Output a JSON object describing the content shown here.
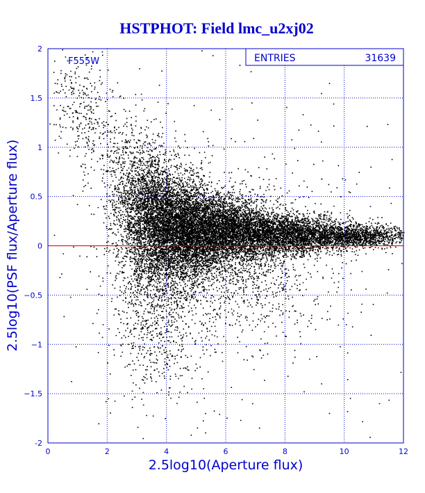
{
  "chart_data": {
    "type": "scatter",
    "title": "HSTPHOT: Field lmc_u2xj02",
    "xlabel": "2.5log10(Aperture flux)",
    "ylabel": "2.5log10(PSF flux/Aperture flux)",
    "xlim": [
      0,
      12
    ],
    "ylim": [
      -2,
      2
    ],
    "x_ticks": [
      0,
      2,
      4,
      6,
      8,
      10,
      12
    ],
    "x_tick_labels": [
      "0",
      "2",
      "4",
      "6",
      "8",
      "10",
      "12"
    ],
    "y_ticks": [
      -2,
      -1.5,
      -1,
      -0.5,
      0,
      0.5,
      1,
      1.5,
      2
    ],
    "y_tick_labels": [
      "-2",
      "−1.5",
      "−1",
      "−0.5",
      "0",
      "0.5",
      "1",
      "1.5",
      "2"
    ],
    "grid": true,
    "reference_line": {
      "y": 0
    },
    "annotation": "F555W",
    "stats_box": {
      "label": "ENTRIES",
      "value": "31639"
    },
    "colors": {
      "title": "#0000cc",
      "axis": "#0000cc",
      "grid": "#0000cc",
      "points": "#000000",
      "reference_line": "#cc0000"
    },
    "series": [
      {
        "density_model": [
          {
            "x": 0.8,
            "y": 1.55,
            "sx": 0.5,
            "sy": 0.25,
            "n": 140
          },
          {
            "x": 1.5,
            "y": 1.2,
            "sx": 0.45,
            "sy": 0.3,
            "n": 180
          },
          {
            "x": 2.6,
            "y": 0.6,
            "sx": 0.4,
            "sy": 0.35,
            "n": 500
          },
          {
            "x": 3.4,
            "y": 0.3,
            "sx": 0.45,
            "sy": 0.35,
            "n": 2400
          },
          {
            "x": 4.5,
            "y": 0.18,
            "sx": 0.6,
            "sy": 0.25,
            "n": 4200
          },
          {
            "x": 6.0,
            "y": 0.15,
            "sx": 0.8,
            "sy": 0.18,
            "n": 4000
          },
          {
            "x": 8.0,
            "y": 0.12,
            "sx": 0.9,
            "sy": 0.1,
            "n": 2700
          },
          {
            "x": 10.3,
            "y": 0.1,
            "sx": 0.9,
            "sy": 0.06,
            "n": 1500
          },
          {
            "x": 3.8,
            "y": -0.6,
            "sx": 0.8,
            "sy": 0.45,
            "n": 900
          },
          {
            "x": 6.5,
            "y": -0.35,
            "sx": 1.6,
            "sy": 0.3,
            "n": 700
          },
          {
            "x": 6.0,
            "y": 0.0,
            "sx": 3.2,
            "sy": 0.9,
            "n": 500
          }
        ],
        "example_points": [
          [
            0.55,
            1.7
          ],
          [
            0.9,
            1.75
          ],
          [
            1.2,
            1.62
          ],
          [
            1.45,
            1.8
          ],
          [
            1.1,
            1.45
          ],
          [
            0.3,
            1.65
          ],
          [
            2.2,
            0.85
          ],
          [
            2.9,
            0.6
          ],
          [
            3.3,
            0.4
          ],
          [
            5.3,
            0.9
          ],
          [
            7.9,
            0.1
          ],
          [
            10.1,
            0.05
          ],
          [
            11.6,
            0.12
          ],
          [
            2.7,
            -0.62
          ],
          [
            3.5,
            -0.9
          ],
          [
            4.5,
            -1.05
          ],
          [
            6.6,
            -1.15
          ],
          [
            8.4,
            -0.75
          ],
          [
            3.2,
            -1.95
          ],
          [
            1.7,
            -1.8
          ]
        ]
      }
    ]
  }
}
